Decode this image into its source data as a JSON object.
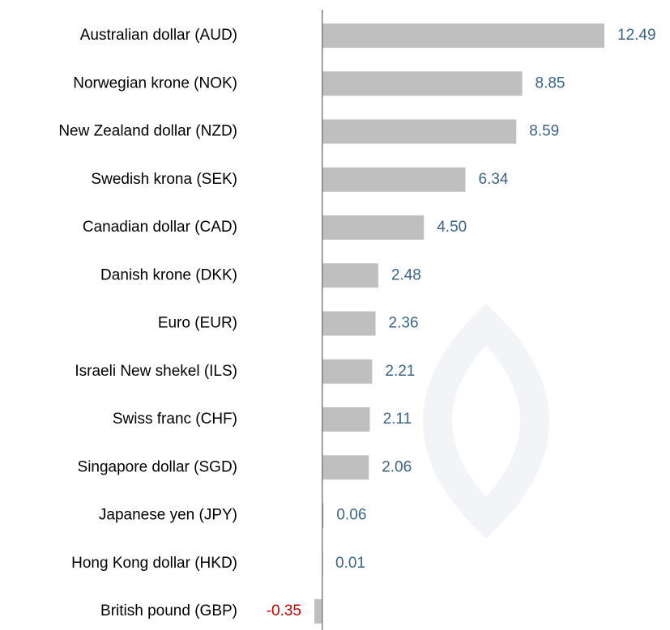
{
  "chart_data": {
    "type": "bar",
    "orientation": "horizontal",
    "categories": [
      "Australian dollar (AUD)",
      "Norwegian krone (NOK)",
      "New Zealand dollar (NZD)",
      "Swedish krona (SEK)",
      "Canadian dollar (CAD)",
      "Danish krone (DKK)",
      "Euro (EUR)",
      "Israeli New shekel (ILS)",
      "Swiss franc (CHF)",
      "Singapore dollar (SGD)",
      "Japanese yen (JPY)",
      "Hong Kong dollar (HKD)",
      "British pound (GBP)"
    ],
    "values": [
      12.49,
      8.85,
      8.59,
      6.34,
      4.5,
      2.48,
      2.36,
      2.21,
      2.11,
      2.06,
      0.06,
      0.01,
      -0.35
    ],
    "value_labels": [
      "12.49",
      "8.85",
      "8.59",
      "6.34",
      "4.50",
      "2.48",
      "2.36",
      "2.21",
      "2.11",
      "2.06",
      "0.06",
      "0.01",
      "-0.35"
    ],
    "color": "#bfbfbf",
    "value_label_color": "#3b6487",
    "negative_value_label_color": "#c00000"
  }
}
